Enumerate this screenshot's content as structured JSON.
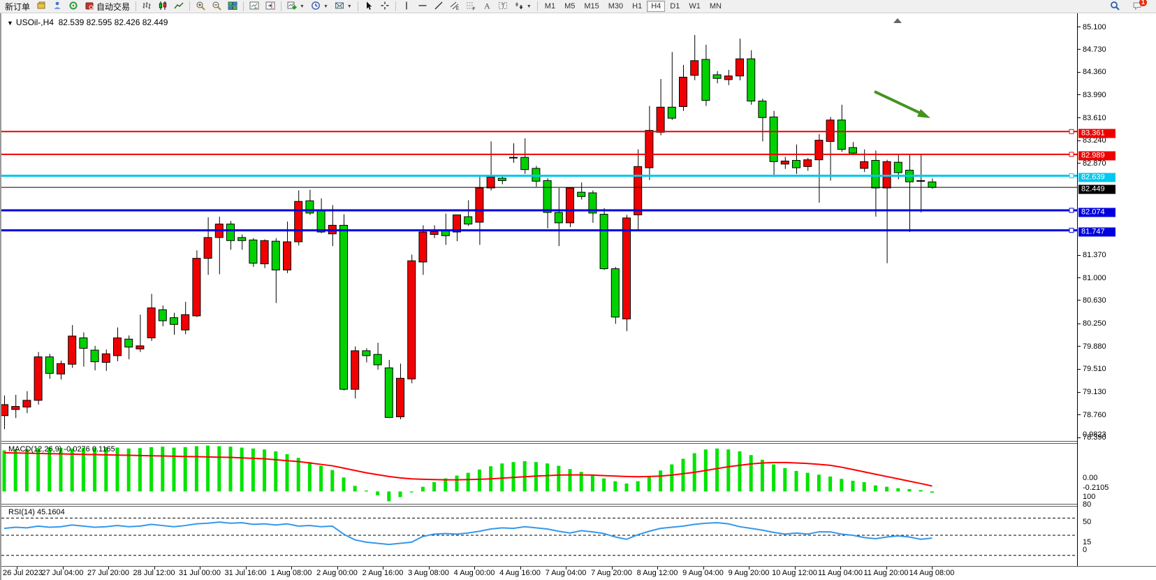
{
  "colors": {
    "bull": "#f00000",
    "bear": "#00d200",
    "wick": "#000000",
    "macd_bar": "#00e400",
    "macd_signal": "#ff0000",
    "rsi_line": "#3498eb",
    "res_line": "#ef0000",
    "cyan_line": "#00c8f0",
    "blue_line": "#0000dc",
    "price_line": "#000000",
    "arrow": "#44931f",
    "accent_badge": "#e82c0c"
  },
  "toolbar": {
    "new_order_label": "新订单",
    "auto_trading_label": "自动交易",
    "groups": [
      {
        "items": [
          {
            "name": "new-order",
            "label": "新订单"
          },
          {
            "name": "chart-window",
            "icon": "chart-window"
          },
          {
            "name": "market-watch",
            "icon": "market-watch"
          },
          {
            "name": "navigator",
            "icon": "navigator"
          },
          {
            "name": "auto-trading",
            "icon": "autotrade",
            "label": "自动交易"
          }
        ]
      },
      {
        "items": [
          {
            "name": "bars-chart",
            "icon": "bars-chart"
          },
          {
            "name": "candles-chart",
            "icon": "candles-chart"
          },
          {
            "name": "line-chart",
            "icon": "line-chart"
          }
        ]
      },
      {
        "items": [
          {
            "name": "zoom-in",
            "icon": "zoom-in"
          },
          {
            "name": "zoom-out",
            "icon": "zoom-out"
          },
          {
            "name": "tile-windows",
            "icon": "tile-windows"
          }
        ]
      },
      {
        "items": [
          {
            "name": "auto-scroll",
            "icon": "chart-scroll"
          },
          {
            "name": "chart-shift",
            "icon": "chart-shift"
          }
        ]
      },
      {
        "items": [
          {
            "name": "add-indicator",
            "icon": "add-indicator",
            "caret": true
          },
          {
            "name": "periods",
            "icon": "periods",
            "caret": true
          },
          {
            "name": "templates",
            "icon": "templates",
            "caret": true
          }
        ]
      },
      {
        "items": [
          {
            "name": "cursor",
            "icon": "cursor"
          },
          {
            "name": "crosshair",
            "icon": "crosshair"
          }
        ]
      },
      {
        "items": [
          {
            "name": "vertical-line",
            "icon": "vline"
          },
          {
            "name": "horizontal-line",
            "icon": "hline"
          },
          {
            "name": "trendline",
            "icon": "trendline"
          },
          {
            "name": "equidistant-channel",
            "icon": "channel"
          },
          {
            "name": "fibonacci",
            "icon": "fibonacci"
          },
          {
            "name": "text",
            "icon": "text-a"
          },
          {
            "name": "text-label",
            "icon": "text-label"
          },
          {
            "name": "arrows",
            "icon": "shapes",
            "caret": true
          }
        ]
      }
    ],
    "timeframes": [
      "M1",
      "M5",
      "M15",
      "M30",
      "H1",
      "H4",
      "D1",
      "W1",
      "MN"
    ],
    "active_timeframe": "H4",
    "search_icon": "search",
    "chat_icon": "chat",
    "notification_count": "1"
  },
  "chart": {
    "title": "USOil-,H4",
    "ohlc_text": "82.539 82.595 82.426 82.449",
    "open": "82.539",
    "high": "82.595",
    "low": "82.426",
    "close": "82.449",
    "price_axis_ticks": [
      "85.100",
      "84.730",
      "84.360",
      "83.990",
      "83.610",
      "83.240",
      "82.870",
      "81.370",
      "81.000",
      "80.630",
      "80.250",
      "79.880",
      "79.510",
      "79.130",
      "78.760",
      "78.390"
    ],
    "time_axis_labels": [
      "26 Jul 2023",
      "27 Jul 04:00",
      "27 Jul 20:00",
      "28 Jul 12:00",
      "31 Jul 00:00",
      "31 Jul 16:00",
      "1 Aug 08:00",
      "2 Aug 00:00",
      "2 Aug 16:00",
      "3 Aug 08:00",
      "4 Aug 00:00",
      "4 Aug 16:00",
      "7 Aug 04:00",
      "7 Aug 20:00",
      "8 Aug 12:00",
      "9 Aug 04:00",
      "9 Aug 20:00",
      "10 Aug 12:00",
      "11 Aug 04:00",
      "11 Aug 20:00",
      "14 Aug 08:00"
    ]
  },
  "macd": {
    "label": "MACD(12,26,9)",
    "value": "-0.0276",
    "signal": "0.1165",
    "axis": [
      "0.9823",
      "0.00",
      "-0.2105"
    ]
  },
  "rsi": {
    "label": "RSI(14)",
    "value": "45.1604",
    "axis": [
      "100",
      "80",
      "50",
      "15",
      "0"
    ],
    "levels": [
      80,
      50,
      15
    ]
  },
  "chart_data": {
    "type": "candlestick",
    "symbol": "USOil-",
    "period": "H4",
    "price_range": [
      78.39,
      85.1
    ],
    "horizontal_lines": [
      {
        "label": "83.361",
        "value": 83.361,
        "color": "#ef0000",
        "width": 2,
        "handle": true
      },
      {
        "label": "82.989",
        "value": 82.989,
        "color": "#ef0000",
        "width": 2,
        "handle": true
      },
      {
        "label": "82.639",
        "value": 82.639,
        "color": "#00c8f0",
        "width": 3,
        "handle": true
      },
      {
        "label": "82.449",
        "value": 82.449,
        "color": "#000000",
        "width": 1,
        "handle": false,
        "current_price": true
      },
      {
        "label": "82.074",
        "value": 82.074,
        "color": "#0000dc",
        "width": 3,
        "handle": true
      },
      {
        "label": "81.747",
        "value": 81.747,
        "color": "#0000dc",
        "width": 3,
        "handle": true
      }
    ],
    "candles": [
      [
        "25 Jul 16:00",
        78.72,
        79.05,
        78.5,
        78.9
      ],
      [
        "25 Jul 20:00",
        78.82,
        79.06,
        78.68,
        78.87
      ],
      [
        "26 Jul 00:00",
        78.86,
        79.12,
        78.76,
        78.97
      ],
      [
        "26 Jul 04:00",
        78.97,
        79.76,
        78.9,
        79.68
      ],
      [
        "26 Jul 08:00",
        79.68,
        79.73,
        79.32,
        79.41
      ],
      [
        "26 Jul 12:00",
        79.4,
        79.62,
        79.31,
        79.57
      ],
      [
        "26 Jul 16:00",
        79.56,
        80.2,
        79.5,
        80.02
      ],
      [
        "26 Jul 20:00",
        79.99,
        80.08,
        79.52,
        79.82
      ],
      [
        "27 Jul 00:00",
        79.79,
        79.86,
        79.46,
        79.6
      ],
      [
        "27 Jul 04:00",
        79.59,
        79.8,
        79.45,
        79.73
      ],
      [
        "27 Jul 08:00",
        79.7,
        80.16,
        79.61,
        79.99
      ],
      [
        "27 Jul 12:00",
        79.97,
        80.03,
        79.64,
        79.84
      ],
      [
        "27 Jul 16:00",
        79.81,
        80.37,
        79.76,
        79.86
      ],
      [
        "27 Jul 20:00",
        79.99,
        80.71,
        79.94,
        80.48
      ],
      [
        "28 Jul 00:00",
        80.45,
        80.52,
        80.18,
        80.27
      ],
      [
        "28 Jul 04:00",
        80.32,
        80.4,
        80.04,
        80.21
      ],
      [
        "28 Jul 08:00",
        80.12,
        80.58,
        80.05,
        80.37
      ],
      [
        "28 Jul 12:00",
        80.35,
        81.42,
        80.33,
        81.29
      ],
      [
        "28 Jul 16:00",
        81.29,
        81.96,
        81.02,
        81.63
      ],
      [
        "28 Jul 20:00",
        81.63,
        81.97,
        81.03,
        81.85
      ],
      [
        "31 Jul 00:00",
        81.85,
        81.9,
        81.43,
        81.58
      ],
      [
        "31 Jul 04:00",
        81.63,
        81.68,
        81.43,
        81.58
      ],
      [
        "31 Jul 08:00",
        81.59,
        81.62,
        81.15,
        81.21
      ],
      [
        "31 Jul 12:00",
        81.2,
        81.6,
        81.13,
        81.58
      ],
      [
        "31 Jul 16:00",
        81.57,
        81.62,
        80.56,
        81.1
      ],
      [
        "31 Jul 20:00",
        81.1,
        81.89,
        81.05,
        81.56
      ],
      [
        "1 Aug 00:00",
        81.56,
        82.4,
        81.5,
        82.22
      ],
      [
        "1 Aug 04:00",
        82.23,
        82.41,
        82.0,
        82.03
      ],
      [
        "1 Aug 08:00",
        82.07,
        82.27,
        81.7,
        81.72
      ],
      [
        "1 Aug 12:00",
        81.69,
        82.16,
        81.49,
        81.83
      ],
      [
        "1 Aug 16:00",
        81.83,
        82.01,
        79.13,
        79.15
      ],
      [
        "1 Aug 20:00",
        79.15,
        79.85,
        79.0,
        79.78
      ],
      [
        "2 Aug 00:00",
        79.78,
        79.82,
        79.59,
        79.7
      ],
      [
        "2 Aug 04:00",
        79.72,
        79.91,
        79.47,
        79.55
      ],
      [
        "2 Aug 08:00",
        79.5,
        79.63,
        78.68,
        78.69
      ],
      [
        "2 Aug 12:00",
        78.7,
        79.57,
        78.66,
        79.33
      ],
      [
        "2 Aug 16:00",
        79.32,
        81.35,
        79.25,
        81.25
      ],
      [
        "2 Aug 20:00",
        81.23,
        81.83,
        81.02,
        81.72
      ],
      [
        "3 Aug 00:00",
        81.68,
        81.83,
        81.62,
        81.73
      ],
      [
        "3 Aug 04:00",
        81.74,
        82.02,
        81.51,
        81.66
      ],
      [
        "3 Aug 08:00",
        81.72,
        82.0,
        81.57,
        82.0
      ],
      [
        "3 Aug 12:00",
        81.97,
        82.24,
        81.82,
        81.85
      ],
      [
        "3 Aug 16:00",
        81.88,
        82.64,
        81.51,
        82.44
      ],
      [
        "3 Aug 20:00",
        82.44,
        83.2,
        82.4,
        82.62
      ],
      [
        "4 Aug 00:00",
        82.6,
        82.65,
        82.5,
        82.56
      ],
      [
        "4 Aug 04:00",
        82.94,
        83.17,
        82.85,
        82.94
      ],
      [
        "4 Aug 08:00",
        82.94,
        83.25,
        82.67,
        82.74
      ],
      [
        "4 Aug 12:00",
        82.76,
        82.8,
        82.46,
        82.55
      ],
      [
        "4 Aug 16:00",
        82.56,
        82.6,
        81.78,
        82.04
      ],
      [
        "4 Aug 20:00",
        82.04,
        82.44,
        81.49,
        81.87
      ],
      [
        "7 Aug 00:00",
        81.87,
        82.44,
        81.8,
        82.44
      ],
      [
        "7 Aug 04:00",
        82.37,
        82.53,
        82.25,
        82.3
      ],
      [
        "7 Aug 08:00",
        82.36,
        82.4,
        81.87,
        82.03
      ],
      [
        "7 Aug 12:00",
        82.01,
        82.11,
        81.1,
        81.12
      ],
      [
        "7 Aug 16:00",
        81.12,
        81.15,
        80.22,
        80.33
      ],
      [
        "7 Aug 20:00",
        80.3,
        82.0,
        80.1,
        81.95
      ],
      [
        "8 Aug 00:00",
        82.0,
        83.07,
        81.74,
        82.79
      ],
      [
        "8 Aug 04:00",
        82.77,
        83.78,
        82.57,
        83.38
      ],
      [
        "8 Aug 08:00",
        83.35,
        84.22,
        83.3,
        83.76
      ],
      [
        "8 Aug 12:00",
        83.76,
        84.66,
        83.55,
        83.58
      ],
      [
        "8 Aug 16:00",
        83.77,
        84.45,
        83.7,
        84.25
      ],
      [
        "8 Aug 20:00",
        84.28,
        84.94,
        84.2,
        84.52
      ],
      [
        "9 Aug 00:00",
        84.54,
        84.78,
        83.78,
        83.87
      ],
      [
        "9 Aug 04:00",
        84.29,
        84.35,
        84.15,
        84.23
      ],
      [
        "9 Aug 08:00",
        84.21,
        84.37,
        84.12,
        84.27
      ],
      [
        "9 Aug 12:00",
        84.27,
        84.88,
        84.2,
        84.55
      ],
      [
        "9 Aug 16:00",
        84.55,
        84.69,
        83.8,
        83.86
      ],
      [
        "9 Aug 20:00",
        83.86,
        83.9,
        83.2,
        83.59
      ],
      [
        "10 Aug 00:00",
        83.6,
        83.7,
        82.62,
        82.87
      ],
      [
        "10 Aug 04:00",
        82.83,
        82.95,
        82.75,
        82.88
      ],
      [
        "10 Aug 08:00",
        82.89,
        83.15,
        82.67,
        82.77
      ],
      [
        "10 Aug 12:00",
        82.79,
        82.93,
        82.72,
        82.9
      ],
      [
        "10 Aug 16:00",
        82.9,
        83.32,
        82.2,
        83.22
      ],
      [
        "10 Aug 20:00",
        83.2,
        83.6,
        82.56,
        83.55
      ],
      [
        "11 Aug 00:00",
        83.55,
        83.8,
        83.03,
        83.07
      ],
      [
        "11 Aug 04:00",
        83.1,
        83.19,
        82.98,
        83.01
      ],
      [
        "11 Aug 08:00",
        82.76,
        83.07,
        82.7,
        82.87
      ],
      [
        "11 Aug 12:00",
        82.89,
        83.05,
        81.97,
        82.44
      ],
      [
        "11 Aug 16:00",
        82.44,
        82.9,
        81.21,
        82.87
      ],
      [
        "11 Aug 20:00",
        82.86,
        82.99,
        82.58,
        82.69
      ],
      [
        "14 Aug 00:00",
        82.73,
        82.98,
        81.72,
        82.54
      ],
      [
        "14 Aug 04:00",
        82.56,
        82.99,
        82.04,
        82.55
      ],
      [
        "14 Aug 08:00",
        82.539,
        82.595,
        82.426,
        82.449
      ]
    ],
    "macd": {
      "range": [
        -0.2105,
        0.9823
      ],
      "histogram": [
        0.88,
        0.9,
        0.91,
        0.93,
        0.94,
        0.93,
        0.92,
        0.93,
        0.94,
        0.95,
        0.94,
        0.92,
        0.93,
        0.95,
        0.96,
        0.94,
        0.95,
        0.97,
        0.9823,
        0.97,
        0.96,
        0.94,
        0.92,
        0.9,
        0.86,
        0.8,
        0.72,
        0.63,
        0.55,
        0.46,
        0.3,
        0.12,
        0.02,
        -0.08,
        -0.2105,
        -0.12,
        -0.02,
        0.1,
        0.2,
        0.28,
        0.34,
        0.4,
        0.47,
        0.54,
        0.6,
        0.63,
        0.65,
        0.63,
        0.6,
        0.55,
        0.48,
        0.42,
        0.35,
        0.28,
        0.22,
        0.17,
        0.22,
        0.32,
        0.45,
        0.58,
        0.7,
        0.82,
        0.9,
        0.92,
        0.9,
        0.86,
        0.78,
        0.68,
        0.58,
        0.5,
        0.44,
        0.4,
        0.36,
        0.32,
        0.27,
        0.23,
        0.2,
        0.13,
        0.1,
        0.07,
        0.05,
        0.03,
        -0.0276
      ],
      "signal": [
        0.83,
        0.825,
        0.82,
        0.815,
        0.81,
        0.805,
        0.8,
        0.795,
        0.79,
        0.785,
        0.78,
        0.775,
        0.77,
        0.765,
        0.76,
        0.755,
        0.75,
        0.745,
        0.74,
        0.735,
        0.73,
        0.72,
        0.71,
        0.7,
        0.68,
        0.66,
        0.64,
        0.61,
        0.58,
        0.55,
        0.5,
        0.45,
        0.4,
        0.36,
        0.32,
        0.29,
        0.27,
        0.26,
        0.255,
        0.25,
        0.25,
        0.255,
        0.26,
        0.27,
        0.285,
        0.3,
        0.315,
        0.33,
        0.34,
        0.35,
        0.355,
        0.355,
        0.35,
        0.34,
        0.33,
        0.32,
        0.315,
        0.32,
        0.33,
        0.35,
        0.38,
        0.41,
        0.45,
        0.49,
        0.53,
        0.56,
        0.59,
        0.61,
        0.62,
        0.62,
        0.61,
        0.6,
        0.58,
        0.56,
        0.52,
        0.47,
        0.42,
        0.37,
        0.32,
        0.27,
        0.22,
        0.17,
        0.1165
      ]
    },
    "rsi": {
      "range": [
        0,
        100
      ],
      "values": [
        62,
        64,
        63,
        66,
        64,
        65,
        68,
        66,
        64,
        65,
        67,
        65,
        66,
        69,
        67,
        65,
        67,
        70,
        71,
        73,
        71,
        72,
        69,
        70,
        68,
        70,
        66,
        67,
        65,
        66,
        52,
        42,
        38,
        36,
        34,
        36,
        38,
        48,
        52,
        53,
        52,
        54,
        57,
        61,
        63,
        62,
        65,
        63,
        61,
        57,
        54,
        58,
        56,
        53,
        47,
        43,
        51,
        57,
        62,
        64,
        66,
        69,
        71,
        72,
        70,
        65,
        62,
        59,
        55,
        52,
        54,
        52,
        56,
        56,
        52,
        50,
        46,
        44,
        47,
        49,
        47,
        43,
        45.16
      ]
    },
    "annotations": [
      {
        "type": "arrow",
        "color": "#44931f",
        "from_xy": [
          1250,
          131
        ],
        "to_xy": [
          1330,
          169
        ]
      }
    ]
  }
}
